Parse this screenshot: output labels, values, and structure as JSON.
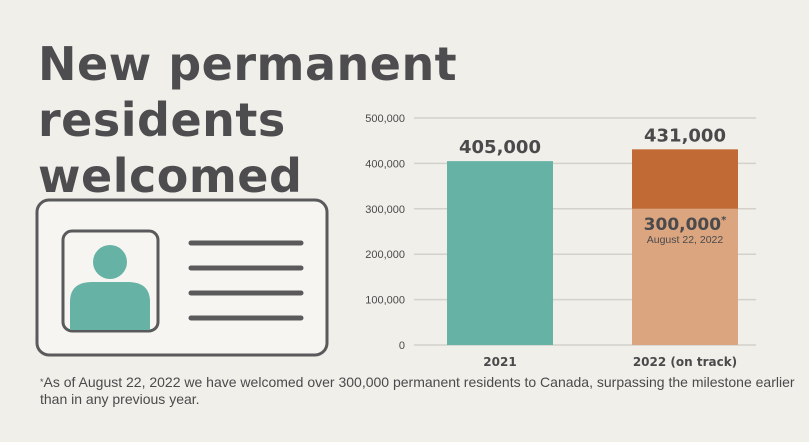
{
  "title_lines": [
    "New permanent residents",
    "welcomed"
  ],
  "colors": {
    "background": "#f0efea",
    "teal": "#66b3a5",
    "dark_orange": "#c26a35",
    "light_orange": "#dba57f",
    "grid": "#d3d1ca",
    "text": "#4a4a4c",
    "card_outline": "#5a5a5c"
  },
  "icons": [
    "id-card-icon",
    "person-avatar-icon"
  ],
  "chart_data": {
    "type": "bar",
    "ylim": [
      0,
      500000
    ],
    "y_ticks": [
      "0",
      "100,000",
      "200,000",
      "300,000",
      "400,000",
      "500,000"
    ],
    "categories": [
      "2021",
      "2022 (on track)"
    ],
    "bars": [
      {
        "category": "2021",
        "total": 405000,
        "total_label": "405,000",
        "segments": [
          {
            "value": 405000,
            "color": "#66b3a5"
          }
        ]
      },
      {
        "category": "2022 (on track)",
        "total": 431000,
        "total_label": "431,000",
        "segments": [
          {
            "value": 300000,
            "color": "#dba57f",
            "label": "300,000",
            "label_sup": "*",
            "sublabel": "August 22, 2022"
          },
          {
            "value": 131000,
            "color": "#c26a35"
          }
        ]
      }
    ]
  },
  "footnote": {
    "marker": "*",
    "text": "As of August 22, 2022 we have welcomed over 300,000 permanent residents to Canada, surpassing the milestone earlier than in any previous year."
  }
}
